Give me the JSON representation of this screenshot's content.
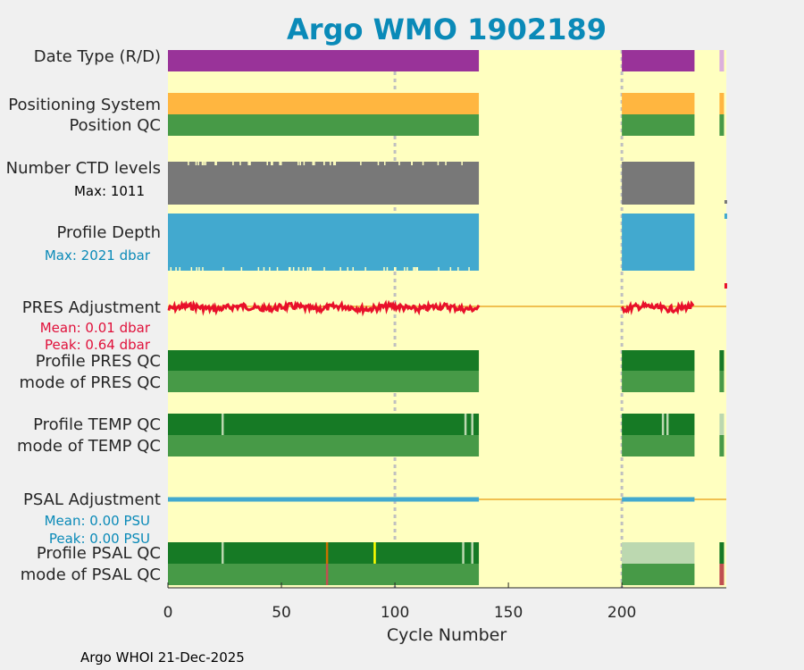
{
  "chart_data": {
    "type": "bar",
    "title": "Argo WMO 1902189",
    "xlabel": "Cycle Number",
    "xlim": [
      0,
      246
    ],
    "xticks": [
      "0",
      "50",
      "100",
      "150",
      "200"
    ],
    "grid_x": [
      100,
      200
    ],
    "colors": {
      "title": "#0a8ab8",
      "background": "#ffffc0",
      "purple": "#993399",
      "pink": "#dcb0dc",
      "orange": "#ffb640",
      "green": "#479a47",
      "darkgreen": "#167a25",
      "lightgreen": "#bcd8b0",
      "gray": "#787878",
      "blue": "#42a9cf",
      "red": "#e8102a",
      "line": "#f0c050",
      "yellow": "#ffff00",
      "brown": "#c87000",
      "mutedred": "#c05050",
      "lightblue": "#0a8ab8",
      "crimson": "#e0103a"
    },
    "rows": [
      {
        "name": "Date Type (R/D)",
        "type": "bar",
        "segments": [
          [
            1,
            137,
            "purple"
          ],
          [
            201,
            232,
            "purple"
          ],
          [
            244,
            245,
            "pink"
          ]
        ]
      },
      {
        "name": "Positioning System",
        "type": "bar",
        "segments": [
          [
            1,
            137,
            "orange"
          ],
          [
            201,
            232,
            "orange"
          ],
          [
            244,
            245,
            "orange"
          ]
        ]
      },
      {
        "name": "Position QC",
        "type": "bar",
        "segments": [
          [
            1,
            137,
            "green"
          ],
          [
            201,
            232,
            "green"
          ],
          [
            244,
            245,
            "green"
          ]
        ]
      },
      {
        "name": "Number CTD levels",
        "type": "bar",
        "segments": [
          [
            1,
            137,
            "gray"
          ],
          [
            201,
            232,
            "gray"
          ]
        ]
      },
      {
        "name": "Profile Depth",
        "type": "bar",
        "segments": [
          [
            1,
            137,
            "blue"
          ],
          [
            201,
            232,
            "blue"
          ]
        ]
      },
      {
        "name": "PRES Adjustment",
        "type": "line",
        "segments": [
          [
            1,
            137
          ],
          [
            201,
            232
          ]
        ],
        "mean": 0.01,
        "peak": 0.64
      },
      {
        "name": "Profile PRES QC",
        "type": "bar",
        "segments": [
          [
            1,
            137,
            "darkgreen"
          ],
          [
            201,
            232,
            "darkgreen"
          ],
          [
            244,
            245,
            "darkgreen"
          ]
        ]
      },
      {
        "name": "mode of PRES QC",
        "type": "bar",
        "segments": [
          [
            1,
            137,
            "green"
          ],
          [
            201,
            232,
            "green"
          ],
          [
            244,
            245,
            "green"
          ]
        ]
      },
      {
        "name": "Profile TEMP QC",
        "type": "bar",
        "segments": [
          [
            1,
            137,
            "darkgreen"
          ],
          [
            201,
            232,
            "darkgreen"
          ],
          [
            244,
            245,
            "lightgreen"
          ]
        ],
        "marks": [
          [
            24,
            "lightgreen"
          ],
          [
            131,
            "lightgreen"
          ],
          [
            134,
            "lightgreen"
          ],
          [
            218,
            "lightgreen"
          ],
          [
            220,
            "lightgreen"
          ]
        ]
      },
      {
        "name": "mode of TEMP QC",
        "type": "bar",
        "segments": [
          [
            1,
            137,
            "green"
          ],
          [
            201,
            232,
            "green"
          ],
          [
            244,
            245,
            "green"
          ]
        ]
      },
      {
        "name": "PSAL Adjustment",
        "type": "line",
        "segments": [
          [
            1,
            137
          ],
          [
            201,
            232
          ]
        ],
        "mean": 0.0,
        "peak": 0.0
      },
      {
        "name": "Profile PSAL QC",
        "type": "bar",
        "segments": [
          [
            1,
            137,
            "darkgreen"
          ],
          [
            201,
            232,
            "lightgreen"
          ],
          [
            244,
            245,
            "darkgreen"
          ]
        ],
        "marks": [
          [
            24,
            "lightgreen"
          ],
          [
            70,
            "brown"
          ],
          [
            91,
            "yellow"
          ],
          [
            130,
            "lightgreen"
          ],
          [
            134,
            "lightgreen"
          ]
        ]
      },
      {
        "name": "mode of PSAL QC",
        "type": "bar",
        "segments": [
          [
            1,
            137,
            "green"
          ],
          [
            201,
            232,
            "green"
          ],
          [
            244,
            245,
            "mutedred"
          ]
        ],
        "marks": [
          [
            70,
            "mutedred"
          ]
        ]
      }
    ],
    "labels": {
      "date_type": "Date Type (R/D)",
      "positioning_system": "Positioning System",
      "position_qc": "Position QC",
      "ctd_levels": "Number CTD levels",
      "ctd_max": "Max: 1011",
      "profile_depth": "Profile Depth",
      "depth_max": "Max: 2021 dbar",
      "pres_adjustment": "PRES Adjustment",
      "pres_mean": "Mean: 0.01 dbar",
      "pres_peak": "Peak: 0.64 dbar",
      "profile_pres_qc": "Profile PRES QC",
      "mode_pres_qc": "mode of PRES QC",
      "profile_temp_qc": "Profile TEMP QC",
      "mode_temp_qc": "mode of TEMP QC",
      "psal_adjustment": "PSAL Adjustment",
      "psal_mean": "Mean: 0.00 PSU",
      "psal_peak": "Peak: 0.00 PSU",
      "profile_psal_qc": "Profile PSAL QC",
      "mode_psal_qc": "mode of PSAL QC"
    }
  },
  "footer": "Argo WHOI 21-Dec-2025"
}
